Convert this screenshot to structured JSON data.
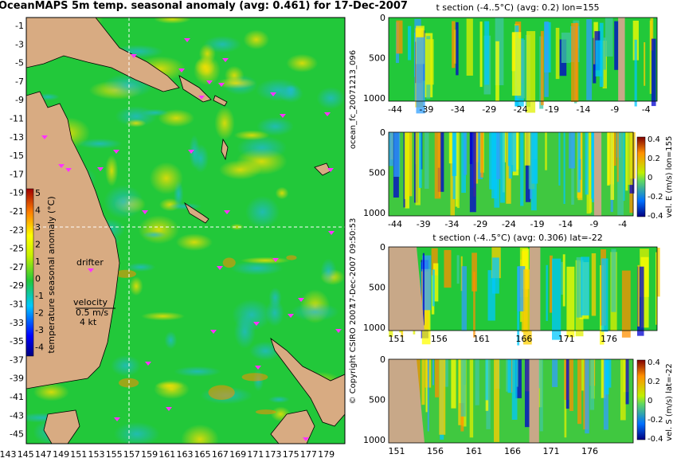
{
  "title": "OceanMAPS 5m temp. seasonal anomaly (avg: 0.461) for 17-Dec-2007",
  "side_label_1": "ocean_fc_20071213_096",
  "side_label_2": "17-Dec-2007 09:50:53",
  "copyright": "© Copyright CSIRO 2007",
  "map": {
    "annotations": {
      "drifter": "drifter",
      "velocity": "velocity",
      "speed": "0.5 m/s",
      "knots": "4 kt"
    },
    "ylabel": "temperature seasonal anomaly (°C)",
    "colorbar_ticks": [
      "5",
      "4",
      "3",
      "2",
      "1",
      "0",
      "-1",
      "-2",
      "-3",
      "-4"
    ],
    "lat_ticks": [
      "-1",
      "-3",
      "-5",
      "-7",
      "-9",
      "-11",
      "-13",
      "-15",
      "-17",
      "-19",
      "-21",
      "-23",
      "-25",
      "-27",
      "-29",
      "-31",
      "-33",
      "-35",
      "-37",
      "-39",
      "-41",
      "-43",
      "-45"
    ],
    "lon_ticks": [
      "143",
      "145",
      "147",
      "149",
      "151",
      "153",
      "155",
      "157",
      "159",
      "161",
      "163",
      "165",
      "167",
      "169",
      "171",
      "173",
      "175",
      "177",
      "179"
    ]
  },
  "panels": {
    "p1_title": "t section (-4..5°C) (avg: 0.2) lon=155",
    "p3_title": "t section (-4..5°C) (avg: 0.306) lat=-22",
    "depth_ticks": [
      "0",
      "500",
      "1000"
    ],
    "lat_axis_ticks": [
      "-44",
      "-39",
      "-34",
      "-29",
      "-24",
      "-19",
      "-14",
      "-9",
      "-4"
    ],
    "lon_axis_ticks": [
      "151",
      "156",
      "161",
      "166",
      "171",
      "176"
    ],
    "cb2_label": "vel. E (m/s) lon=155",
    "cb4_label": "vel. S (m/s) lat=-22",
    "vel_ticks": [
      "0.4",
      "0.2",
      "0",
      "-0.2",
      "-0.4"
    ]
  },
  "colors": {
    "land": "#d8ab82",
    "ocean_base": "#22c83a",
    "marker": "#ff33ff",
    "crosshair": "#ffffff"
  },
  "chart_data": [
    {
      "type": "heatmap",
      "title": "OceanMAPS 5m temp. seasonal anomaly (avg: 0.461) for 17-Dec-2007",
      "xlim": [
        143,
        180
      ],
      "ylim": [
        -45,
        0
      ],
      "colorbar_range": [
        -4,
        5
      ],
      "crosshair": {
        "lon": 155,
        "lat": -22
      }
    },
    {
      "type": "heatmap",
      "title": "t section (-4..5°C) (avg: 0.2) lon=155",
      "xlim": [
        -45,
        0
      ],
      "ylim": [
        1050,
        0
      ],
      "color_range": [
        -4,
        5
      ]
    },
    {
      "type": "heatmap",
      "title": "vel. E (m/s) lon=155",
      "xlim": [
        -45,
        0
      ],
      "ylim": [
        1050,
        0
      ],
      "color_range": [
        -0.4,
        0.4
      ]
    },
    {
      "type": "heatmap",
      "title": "t section (-4..5°C) (avg: 0.306) lat=-22",
      "xlim": [
        150,
        180
      ],
      "ylim": [
        1050,
        0
      ],
      "color_range": [
        -4,
        5
      ]
    },
    {
      "type": "heatmap",
      "title": "vel. S (m/s) lat=-22",
      "xlim": [
        150,
        180
      ],
      "ylim": [
        1050,
        0
      ],
      "color_range": [
        -0.4,
        0.4
      ]
    }
  ]
}
